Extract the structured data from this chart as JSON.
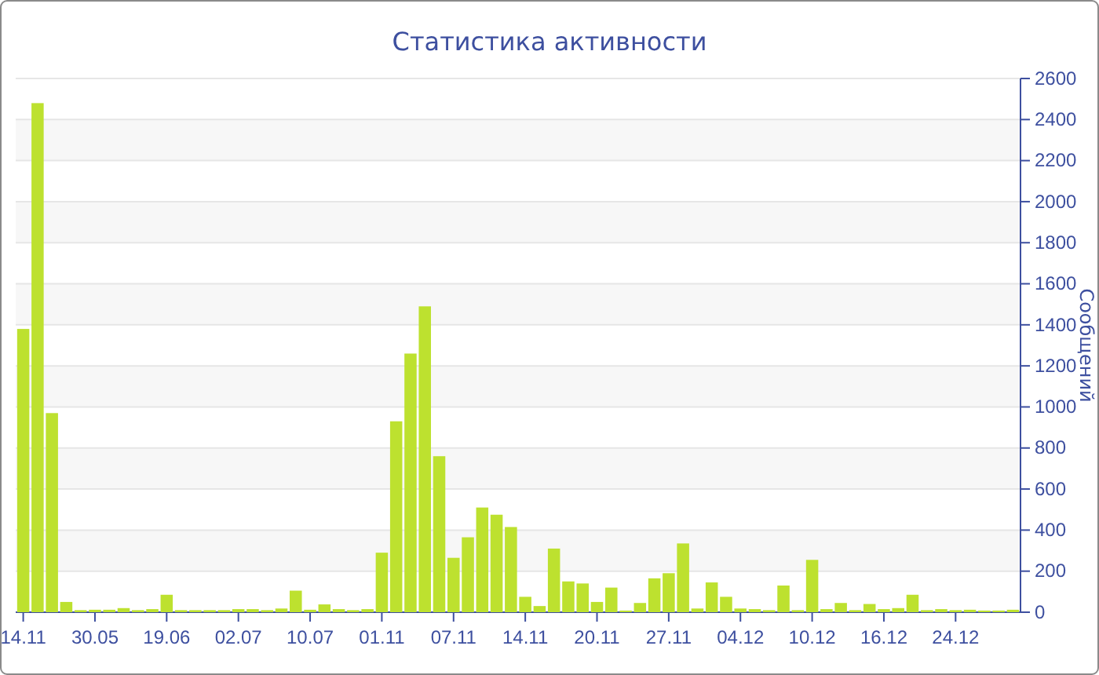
{
  "chart_data": {
    "type": "bar",
    "title": "Статистика активности",
    "ylabel": "Сообщений",
    "categories": [
      "14.11",
      null,
      null,
      null,
      null,
      "30.05",
      null,
      null,
      null,
      null,
      "19.06",
      null,
      null,
      null,
      null,
      "02.07",
      null,
      null,
      null,
      null,
      "10.07",
      null,
      null,
      null,
      null,
      "01.11",
      null,
      null,
      null,
      null,
      "07.11",
      null,
      null,
      null,
      null,
      "14.11",
      null,
      null,
      null,
      null,
      "20.11",
      null,
      null,
      null,
      null,
      "27.11",
      null,
      null,
      null,
      null,
      "04.12",
      null,
      null,
      null,
      null,
      "10.12",
      null,
      null,
      null,
      null,
      "16.12",
      null,
      null,
      null,
      null,
      "24.12",
      null,
      null,
      null,
      null
    ],
    "values": [
      1380,
      2480,
      970,
      50,
      10,
      12,
      12,
      20,
      10,
      15,
      85,
      10,
      10,
      10,
      10,
      15,
      15,
      10,
      18,
      105,
      12,
      38,
      15,
      10,
      15,
      290,
      930,
      1260,
      1490,
      760,
      265,
      365,
      510,
      475,
      415,
      75,
      30,
      310,
      150,
      140,
      50,
      120,
      8,
      45,
      165,
      190,
      335,
      18,
      145,
      75,
      18,
      15,
      10,
      130,
      10,
      255,
      15,
      45,
      10,
      40,
      15,
      20,
      85,
      10,
      15,
      10,
      12,
      8,
      8,
      12
    ],
    "color": "#bde12f",
    "ylim": [
      0,
      2600
    ],
    "yticks": [
      0,
      200,
      400,
      600,
      800,
      1000,
      1200,
      1400,
      1600,
      1800,
      2000,
      2200,
      2400,
      2600
    ],
    "grid": "y"
  }
}
